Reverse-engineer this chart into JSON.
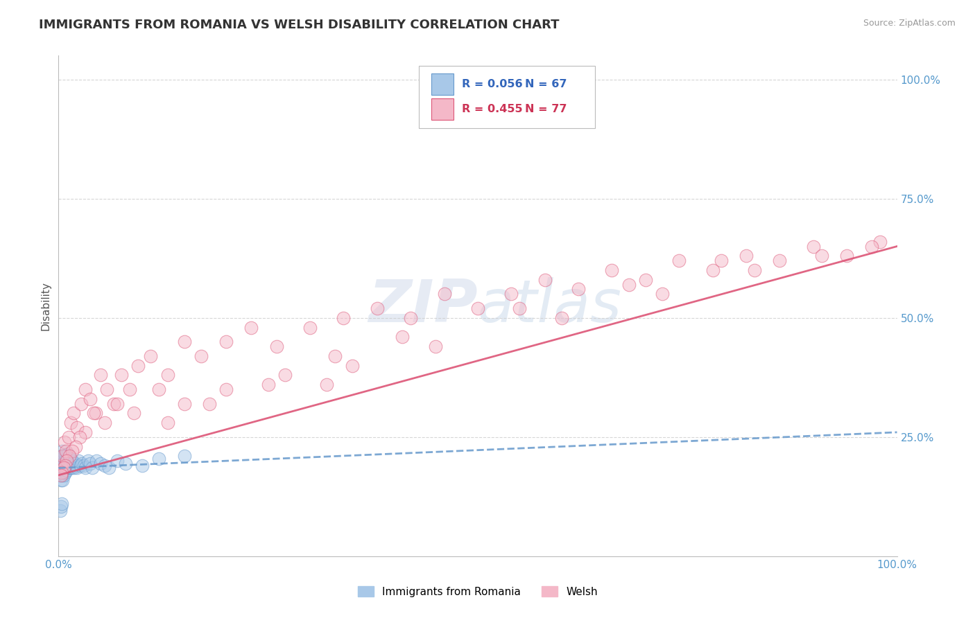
{
  "title": "IMMIGRANTS FROM ROMANIA VS WELSH DISABILITY CORRELATION CHART",
  "source": "Source: ZipAtlas.com",
  "ylabel": "Disability",
  "watermark": "ZIPatlas",
  "legend1_r": "0.056",
  "legend1_n": "67",
  "legend2_r": "0.455",
  "legend2_n": "77",
  "series1_label": "Immigrants from Romania",
  "series2_label": "Welsh",
  "xlim": [
    0.0,
    1.0
  ],
  "ylim": [
    0.0,
    1.05
  ],
  "ytick_positions": [
    0.25,
    0.5,
    0.75,
    1.0
  ],
  "ytick_labels": [
    "25.0%",
    "50.0%",
    "75.0%",
    "100.0%"
  ],
  "color_blue": "#a8c8e8",
  "color_pink": "#f4b8c8",
  "color_blue_line": "#6699cc",
  "color_pink_line": "#dd5577",
  "color_legend_r_blue": "#3366bb",
  "color_legend_r_pink": "#cc3355",
  "scatter1_x": [
    0.001,
    0.002,
    0.002,
    0.003,
    0.003,
    0.003,
    0.004,
    0.004,
    0.004,
    0.005,
    0.005,
    0.005,
    0.005,
    0.006,
    0.006,
    0.006,
    0.006,
    0.007,
    0.007,
    0.007,
    0.008,
    0.008,
    0.008,
    0.009,
    0.009,
    0.009,
    0.01,
    0.01,
    0.01,
    0.011,
    0.011,
    0.012,
    0.012,
    0.013,
    0.013,
    0.014,
    0.014,
    0.015,
    0.015,
    0.016,
    0.016,
    0.017,
    0.018,
    0.019,
    0.02,
    0.021,
    0.022,
    0.024,
    0.026,
    0.028,
    0.03,
    0.032,
    0.035,
    0.038,
    0.04,
    0.045,
    0.05,
    0.055,
    0.06,
    0.07,
    0.08,
    0.1,
    0.12,
    0.15,
    0.002,
    0.003,
    0.004
  ],
  "scatter1_y": [
    0.18,
    0.19,
    0.17,
    0.2,
    0.18,
    0.16,
    0.21,
    0.19,
    0.17,
    0.2,
    0.18,
    0.22,
    0.16,
    0.19,
    0.21,
    0.17,
    0.185,
    0.2,
    0.18,
    0.195,
    0.19,
    0.21,
    0.175,
    0.2,
    0.185,
    0.195,
    0.19,
    0.205,
    0.18,
    0.195,
    0.215,
    0.19,
    0.185,
    0.2,
    0.195,
    0.185,
    0.19,
    0.205,
    0.195,
    0.185,
    0.2,
    0.195,
    0.19,
    0.185,
    0.195,
    0.19,
    0.185,
    0.2,
    0.19,
    0.195,
    0.19,
    0.185,
    0.2,
    0.195,
    0.185,
    0.2,
    0.195,
    0.19,
    0.185,
    0.2,
    0.195,
    0.19,
    0.205,
    0.21,
    0.095,
    0.105,
    0.11
  ],
  "scatter2_x": [
    0.003,
    0.005,
    0.007,
    0.009,
    0.012,
    0.015,
    0.018,
    0.022,
    0.027,
    0.032,
    0.038,
    0.044,
    0.05,
    0.058,
    0.066,
    0.075,
    0.085,
    0.095,
    0.11,
    0.13,
    0.15,
    0.17,
    0.2,
    0.23,
    0.26,
    0.3,
    0.34,
    0.38,
    0.42,
    0.46,
    0.5,
    0.54,
    0.58,
    0.62,
    0.66,
    0.7,
    0.74,
    0.78,
    0.82,
    0.86,
    0.9,
    0.94,
    0.98,
    0.33,
    0.27,
    0.2,
    0.15,
    0.12,
    0.09,
    0.07,
    0.055,
    0.042,
    0.032,
    0.025,
    0.02,
    0.016,
    0.013,
    0.01,
    0.008,
    0.006,
    0.004,
    0.003,
    0.35,
    0.25,
    0.18,
    0.13,
    0.32,
    0.45,
    0.6,
    0.72,
    0.83,
    0.91,
    0.97,
    0.41,
    0.55,
    0.68,
    0.79
  ],
  "scatter2_y": [
    0.19,
    0.21,
    0.24,
    0.22,
    0.25,
    0.28,
    0.3,
    0.27,
    0.32,
    0.35,
    0.33,
    0.3,
    0.38,
    0.35,
    0.32,
    0.38,
    0.35,
    0.4,
    0.42,
    0.38,
    0.45,
    0.42,
    0.45,
    0.48,
    0.44,
    0.48,
    0.5,
    0.52,
    0.5,
    0.55,
    0.52,
    0.55,
    0.58,
    0.56,
    0.6,
    0.58,
    0.62,
    0.6,
    0.63,
    0.62,
    0.65,
    0.63,
    0.66,
    0.42,
    0.38,
    0.35,
    0.32,
    0.35,
    0.3,
    0.32,
    0.28,
    0.3,
    0.26,
    0.25,
    0.23,
    0.22,
    0.21,
    0.2,
    0.19,
    0.185,
    0.175,
    0.17,
    0.4,
    0.36,
    0.32,
    0.28,
    0.36,
    0.44,
    0.5,
    0.55,
    0.6,
    0.63,
    0.65,
    0.46,
    0.52,
    0.57,
    0.62
  ],
  "trend1_x": [
    0.0,
    1.0
  ],
  "trend1_y": [
    0.185,
    0.26
  ],
  "trend2_x": [
    0.0,
    1.0
  ],
  "trend2_y": [
    0.17,
    0.65
  ],
  "background_color": "#ffffff",
  "grid_color": "#cccccc"
}
